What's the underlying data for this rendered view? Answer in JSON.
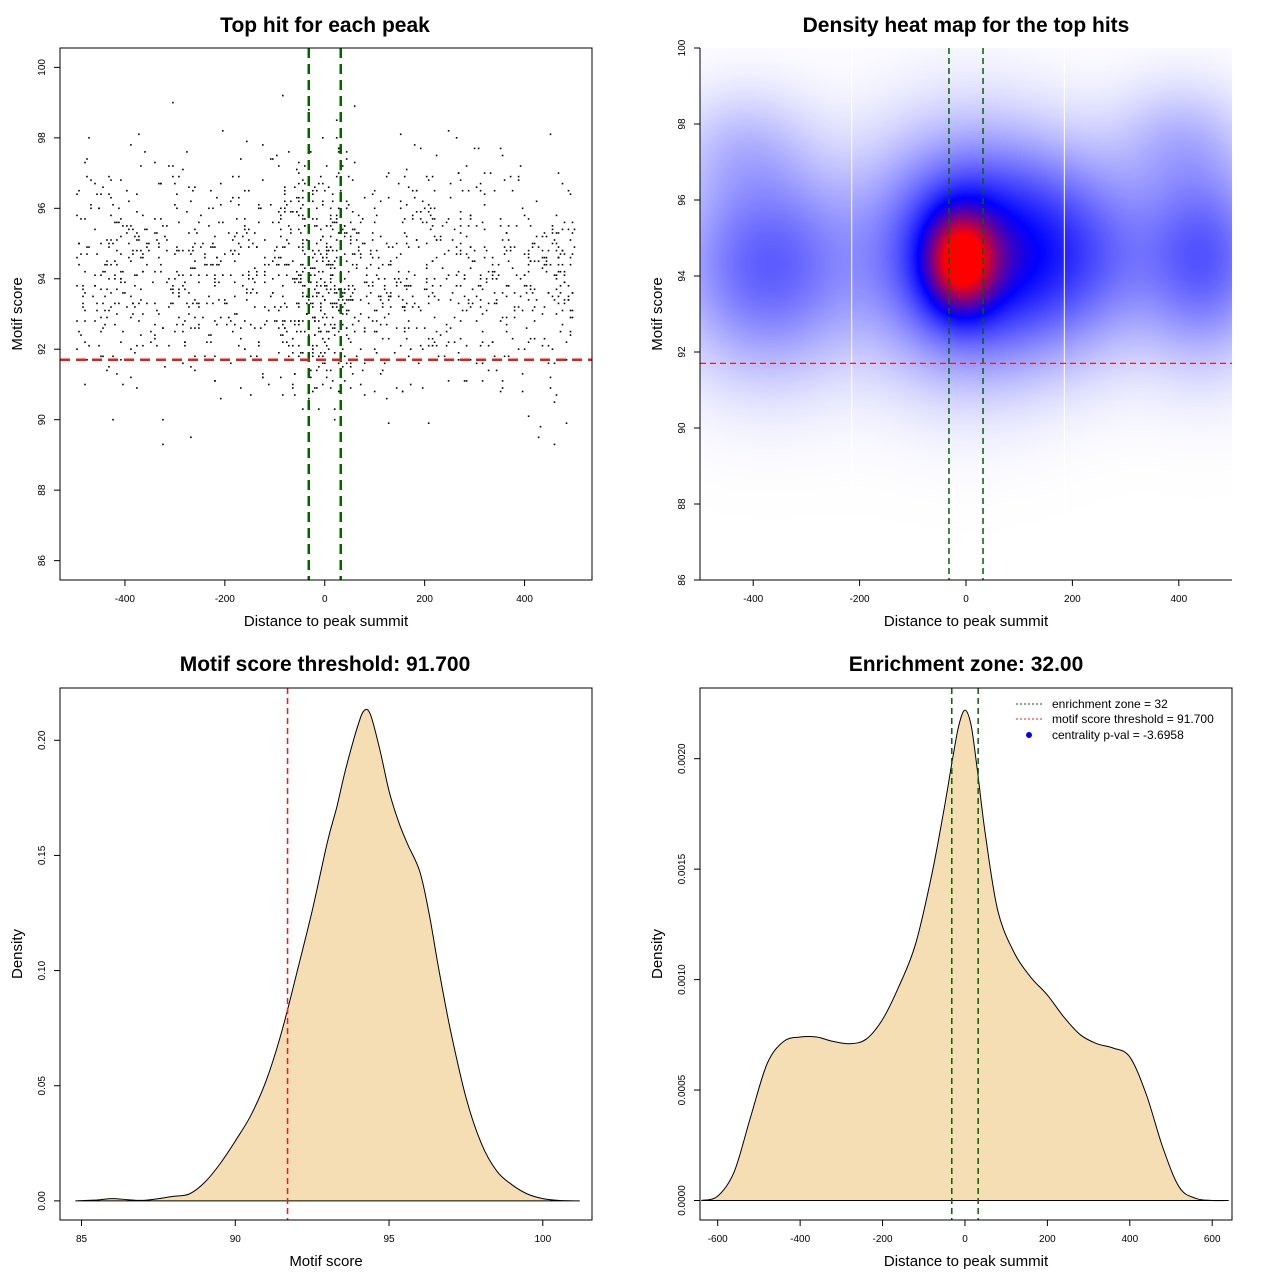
{
  "chart_data": [
    {
      "type": "scatter",
      "title": "Top hit for each peak",
      "xlabel": "Distance to peak summit",
      "ylabel": "Motif score",
      "xlim": [
        -530,
        535
      ],
      "ylim": [
        85.45,
        100.55
      ],
      "x_ticks": [
        -400,
        -200,
        0,
        200,
        400
      ],
      "x_tick_labels": [
        "-400",
        "-200",
        "0",
        "200",
        "400"
      ],
      "y_ticks": [
        86,
        88,
        90,
        92,
        94,
        96,
        98,
        100
      ],
      "y_tick_labels": [
        "86",
        "88",
        "90",
        "92",
        "94",
        "96",
        "98",
        "100"
      ],
      "vlines": [
        -32,
        32
      ],
      "hline": 91.7,
      "line_colors": {
        "enrichment": "#006400",
        "threshold": "#dd2222"
      },
      "point_color": "#000000",
      "n_points": 1500,
      "points_note": "approx. 1500 hits; scores ~N(94.1, 1.7) between -500 and 500, denser near 0"
    },
    {
      "type": "heatmap",
      "title": "Density heat map for the top hits",
      "xlabel": "Distance to peak summit",
      "ylabel": "Motif score",
      "xlim": [
        -500,
        500
      ],
      "ylim": [
        86,
        100
      ],
      "x_ticks": [
        -400,
        -200,
        0,
        200,
        400
      ],
      "x_tick_labels": [
        "-400",
        "-200",
        "0",
        "200",
        "400"
      ],
      "y_ticks": [
        86,
        88,
        90,
        92,
        94,
        96,
        98,
        100
      ],
      "y_tick_labels": [
        "86",
        "88",
        "90",
        "92",
        "94",
        "96",
        "98",
        "100"
      ],
      "vlines": [
        -32,
        32
      ],
      "hline": 91.7,
      "grid_vlines": [
        -200,
        0,
        200
      ],
      "colormap": [
        "#ffffff",
        "#0000ff",
        "#ff0000"
      ],
      "density_components": [
        {
          "x": -10,
          "y": 94.4,
          "sx": 45,
          "sy": 0.9,
          "w": 1.0
        },
        {
          "x": 0,
          "y": 94.6,
          "sx": 115,
          "sy": 1.8,
          "w": 0.7
        },
        {
          "x": -370,
          "y": 94.3,
          "sx": 110,
          "sy": 1.7,
          "w": 0.42
        },
        {
          "x": 180,
          "y": 94.6,
          "sx": 120,
          "sy": 1.6,
          "w": 0.45
        },
        {
          "x": 450,
          "y": 94.5,
          "sx": 80,
          "sy": 1.6,
          "w": 0.42
        },
        {
          "x": 400,
          "y": 97.5,
          "sx": 80,
          "sy": 1.0,
          "w": 0.12
        },
        {
          "x": -420,
          "y": 97.3,
          "sx": 80,
          "sy": 1.0,
          "w": 0.1
        }
      ]
    },
    {
      "type": "area",
      "title": "Motif score threshold: 91.700",
      "xlabel": "Motif score",
      "ylabel": "Density",
      "xlim": [
        84.3,
        101.6
      ],
      "ylim": [
        -0.0083,
        0.2227
      ],
      "x_ticks": [
        85,
        90,
        95,
        100
      ],
      "x_tick_labels": [
        "85",
        "90",
        "95",
        "100"
      ],
      "y_ticks": [
        0.0,
        0.05,
        0.1,
        0.15,
        0.2
      ],
      "y_tick_labels": [
        "0.00",
        "0.05",
        "0.10",
        "0.15",
        "0.20"
      ],
      "vline": 91.7,
      "fill_color": "#f5deb3",
      "x": [
        84.8,
        85.5,
        86,
        86.5,
        87,
        87.5,
        88,
        88.5,
        89,
        89.5,
        90,
        90.5,
        91,
        91.5,
        92,
        92.5,
        93,
        93.3,
        93.6,
        94,
        94.2,
        94.4,
        94.7,
        95,
        95.3,
        95.6,
        96,
        96.3,
        96.6,
        97,
        97.5,
        98,
        98.5,
        99,
        99.5,
        100,
        100.5,
        101.2
      ],
      "y": [
        0.0,
        0.0004,
        0.001,
        0.0005,
        0.0002,
        0.001,
        0.002,
        0.003,
        0.008,
        0.016,
        0.026,
        0.037,
        0.052,
        0.073,
        0.099,
        0.126,
        0.156,
        0.171,
        0.188,
        0.207,
        0.213,
        0.211,
        0.196,
        0.178,
        0.165,
        0.155,
        0.143,
        0.125,
        0.102,
        0.074,
        0.045,
        0.025,
        0.013,
        0.007,
        0.003,
        0.001,
        0.0002,
        0.0
      ]
    },
    {
      "type": "area",
      "title": "Enrichment zone: 32.00",
      "xlabel": "Distance to peak summit",
      "ylabel": "Density",
      "xlim": [
        -643,
        648
      ],
      "ylim": [
        -8.83e-05,
        0.00232
      ],
      "x_ticks": [
        -600,
        -400,
        -200,
        0,
        200,
        400,
        600
      ],
      "x_tick_labels": [
        "-600",
        "-400",
        "-200",
        "0",
        "200",
        "400",
        "600"
      ],
      "y_ticks": [
        0.0,
        0.0005,
        0.001,
        0.0015,
        0.002
      ],
      "y_tick_labels": [
        "0.0000",
        "0.0005",
        "0.0010",
        "0.0015",
        "0.0020"
      ],
      "vlines": [
        -32,
        32
      ],
      "fill_color": "#f5deb3",
      "x": [
        -640,
        -600,
        -560,
        -520,
        -480,
        -440,
        -400,
        -360,
        -320,
        -280,
        -240,
        -200,
        -160,
        -120,
        -80,
        -50,
        -30,
        -15,
        0,
        15,
        30,
        50,
        80,
        120,
        160,
        200,
        240,
        280,
        320,
        360,
        400,
        440,
        480,
        520,
        560,
        600,
        640
      ],
      "y": [
        0.0,
        2e-05,
        0.00013,
        0.00038,
        0.00062,
        0.00072,
        0.00074,
        0.00074,
        0.00072,
        0.00071,
        0.00073,
        0.00082,
        0.00097,
        0.00116,
        0.00148,
        0.00178,
        0.002,
        0.00215,
        0.00222,
        0.00215,
        0.00195,
        0.00165,
        0.00131,
        0.00112,
        0.00101,
        0.00093,
        0.00083,
        0.00075,
        0.00071,
        0.00069,
        0.00065,
        0.00048,
        0.00024,
        6e-05,
        1e-05,
        0.0,
        0.0
      ],
      "legend_position": "top-right",
      "legend": [
        {
          "label": "enrichment zone = 32",
          "color": "#006400",
          "kind": "dotted-line"
        },
        {
          "label": "motif score threshold = 91.700",
          "color": "#dd2222",
          "kind": "dotted-line"
        },
        {
          "label": "centrality p-val = -3.6958",
          "color": "#0000ff",
          "kind": "point"
        }
      ]
    }
  ]
}
